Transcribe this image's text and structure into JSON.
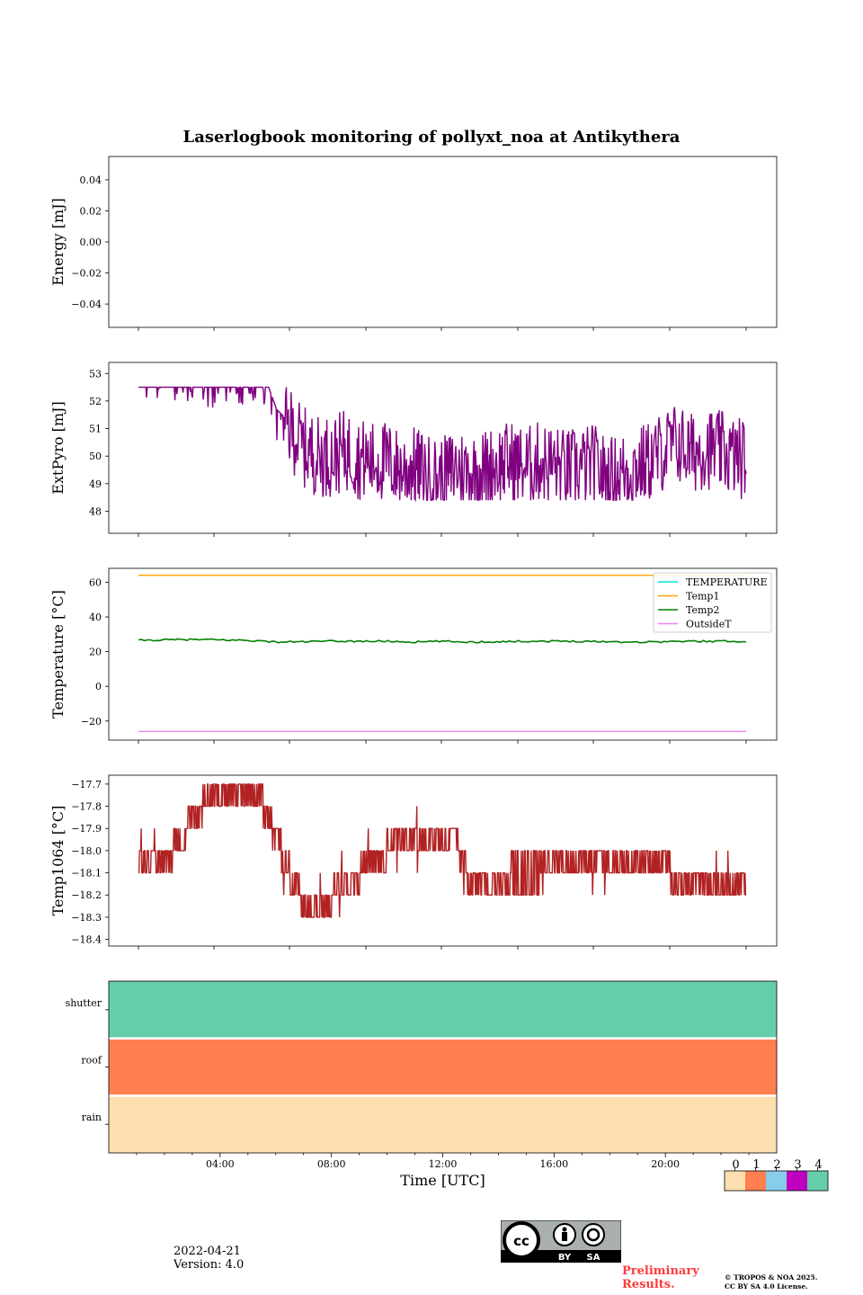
{
  "title": "Laserlogbook monitoring of pollyxt_noa at Antikythera",
  "date": "2022-04-21",
  "version": "Version: 4.0",
  "preliminary": [
    "Preliminary",
    "Results."
  ],
  "copyright": [
    "© TROPOS & NOA 2025.",
    "CC BY SA 4.0 License."
  ],
  "license_badge": {
    "by": "BY",
    "sa": "SA"
  },
  "chart_data": [
    {
      "type": "line",
      "ylabel": "Energy [mJ]",
      "ylim": [
        -0.055,
        0.055
      ],
      "yticks": [
        -0.04,
        -0.02,
        0.0,
        0.02,
        0.04
      ],
      "ytick_labels": [
        "−0.04",
        "−0.02",
        "0.00",
        "0.02",
        "0.04"
      ],
      "series": []
    },
    {
      "type": "line",
      "ylabel": "ExtPyro [mJ]",
      "ylim": [
        47.2,
        53.4
      ],
      "yticks": [
        48,
        49,
        50,
        51,
        52,
        53
      ],
      "ytick_labels": [
        "48",
        "49",
        "50",
        "51",
        "52",
        "53"
      ],
      "color": "#800080",
      "x_hours": [
        1.0,
        1.5,
        2.0,
        2.5,
        3.0,
        3.5,
        4.0,
        4.5,
        5.0,
        5.5,
        6.0,
        6.5,
        7.0,
        7.5,
        8.0,
        8.5,
        9.0,
        9.5,
        10.0,
        10.5,
        11.0,
        11.5,
        12.0,
        12.5,
        13.0,
        13.5,
        14.0,
        14.5,
        15.0,
        15.5,
        16.0,
        16.5,
        17.0,
        17.5,
        18.0,
        18.5,
        19.0,
        19.5,
        20.0,
        20.5,
        21.0,
        21.5,
        22.0,
        22.5,
        23.0
      ],
      "values": [
        53.1,
        53.0,
        53.0,
        52.9,
        52.8,
        52.7,
        52.7,
        52.8,
        52.9,
        52.9,
        51.5,
        51.0,
        50.3,
        50.0,
        50.0,
        50.2,
        49.9,
        49.8,
        49.8,
        49.5,
        49.6,
        49.3,
        49.2,
        49.6,
        49.4,
        49.5,
        49.7,
        49.8,
        49.6,
        49.8,
        49.7,
        49.5,
        49.6,
        49.7,
        49.2,
        49.4,
        49.6,
        49.8,
        50.2,
        50.5,
        50.1,
        50.3,
        50.2,
        50.0,
        49.9
      ]
    },
    {
      "type": "line",
      "ylabel": "Temperature [°C]",
      "ylim": [
        -31,
        68
      ],
      "yticks": [
        -20,
        0,
        20,
        40,
        60
      ],
      "ytick_labels": [
        "−20",
        "0",
        "20",
        "40",
        "60"
      ],
      "legend": "top-right",
      "x_range": [
        1.0,
        23.0
      ],
      "series": [
        {
          "name": "TEMPERATURE",
          "color": "#00e5e5",
          "values": []
        },
        {
          "name": "Temp1",
          "color": "#ffa500",
          "values": [
            64,
            64
          ]
        },
        {
          "name": "Temp2",
          "color": "#008000",
          "x_hours": [
            1,
            3,
            5,
            6,
            8,
            10,
            11,
            12,
            13,
            15,
            17,
            19,
            21,
            23
          ],
          "values": [
            26.5,
            27,
            26.5,
            25.5,
            26,
            26,
            25.5,
            26,
            25.5,
            26,
            26,
            25.5,
            26,
            26
          ]
        },
        {
          "name": "OutsideT",
          "color": "#ee82ee",
          "values": [
            -26,
            -26
          ]
        }
      ]
    },
    {
      "type": "line",
      "ylabel": "Temp1064 [°C]",
      "ylim": [
        -18.43,
        -17.66
      ],
      "yticks": [
        -18.4,
        -18.3,
        -18.2,
        -18.1,
        -18.0,
        -17.9,
        -17.8,
        -17.7
      ],
      "ytick_labels": [
        "−18.4",
        "−18.3",
        "−18.2",
        "−18.1",
        "−18.0",
        "−17.9",
        "−17.8",
        "−17.7"
      ],
      "color": "#b22222",
      "x_hours": [
        1.0,
        1.5,
        2.0,
        2.5,
        3.0,
        3.5,
        4.0,
        4.5,
        5.0,
        5.5,
        6.0,
        6.5,
        7.0,
        7.5,
        8.0,
        8.5,
        9.0,
        9.5,
        10.0,
        10.5,
        11.0,
        11.5,
        12.0,
        12.5,
        13.0,
        13.5,
        14.0,
        14.5,
        15.0,
        15.5,
        16.0,
        16.5,
        17.0,
        17.5,
        18.0,
        18.5,
        19.0,
        19.5,
        20.0,
        20.5,
        21.0,
        21.5,
        22.0,
        22.5,
        23.0
      ],
      "values": [
        -18.05,
        -18.1,
        -18.05,
        -17.95,
        -17.85,
        -17.8,
        -17.8,
        -17.75,
        -17.75,
        -17.8,
        -17.95,
        -18.1,
        -18.25,
        -18.25,
        -18.2,
        -18.15,
        -18.1,
        -18.05,
        -18.0,
        -17.95,
        -17.95,
        -17.95,
        -17.95,
        -17.95,
        -18.15,
        -18.15,
        -18.15,
        -18.1,
        -18.1,
        -18.1,
        -18.05,
        -18.05,
        -18.05,
        -18.05,
        -18.05,
        -18.05,
        -18.05,
        -18.05,
        -18.05,
        -18.15,
        -18.15,
        -18.15,
        -18.15,
        -18.15,
        -18.1
      ]
    },
    {
      "type": "heatmap",
      "xlabel": "Time [UTC]",
      "xlim": [
        0,
        24
      ],
      "xticks": [
        4,
        8,
        12,
        16,
        20
      ],
      "xtick_labels": [
        "04:00",
        "08:00",
        "12:00",
        "16:00",
        "20:00"
      ],
      "rows": [
        "shutter",
        "roof",
        "rain"
      ],
      "row_values": [
        4,
        1,
        0
      ],
      "colorbar": {
        "levels": [
          0,
          1,
          2,
          3,
          4
        ],
        "labels": [
          "0",
          "1",
          "2",
          "3",
          "4"
        ],
        "colors": [
          "#fddfaf",
          "#ff7f50",
          "#87ceeb",
          "#c000c0",
          "#66cdaa"
        ]
      }
    }
  ]
}
